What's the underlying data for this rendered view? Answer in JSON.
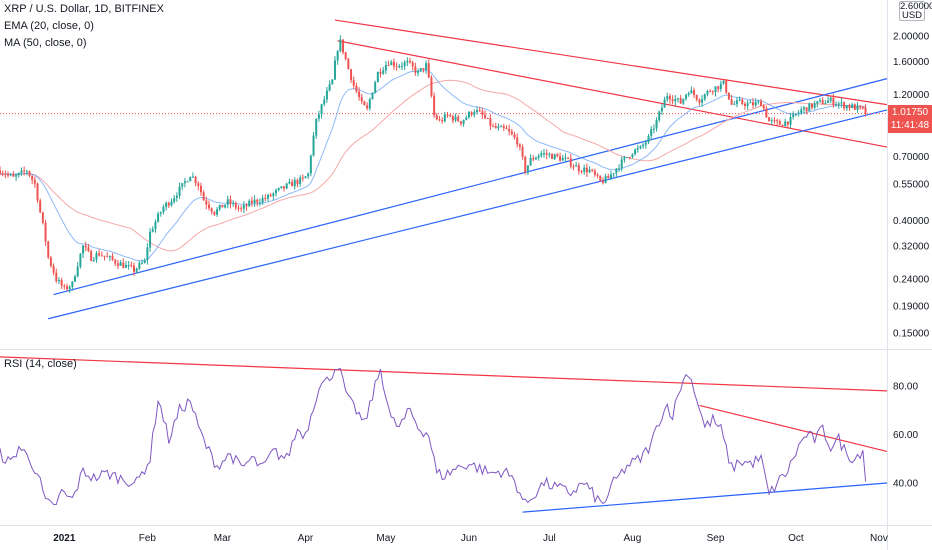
{
  "legend": {
    "symbol": "XRP / U.S. Dollar, 1D, BITFINEX",
    "ema": "EMA (20, close, 0)",
    "ma": "MA (50, close, 0)",
    "rsi": "RSI (14, close)"
  },
  "scale_unit": "USD",
  "last_price": {
    "value": "1.01750",
    "countdown": "11:41:48"
  },
  "colors": {
    "up": "#26a69a",
    "down": "#ef5350",
    "ema": "#5b9cf6",
    "ma": "#f7a8a8",
    "rsi_line": "#7e57c2",
    "rsi_band": "#ede7f6",
    "trend_red": "#f23645",
    "trend_blue": "#2962ff"
  },
  "chart_data": [
    {
      "type": "candlestick",
      "title": "XRP / U.S. Dollar, 1D, BITFINEX",
      "y_scale": "log",
      "y_ticks": [
        "2.60000",
        "2.00000",
        "1.60000",
        "1.20000",
        "0.70000",
        "0.55000",
        "0.40000",
        "0.32000",
        "0.24000",
        "0.19000",
        "0.15000"
      ],
      "x_ticks": [
        "2021",
        "Feb",
        "Mar",
        "Apr",
        "May",
        "Jun",
        "Jul",
        "Aug",
        "Sep",
        "Oct",
        "Nov"
      ],
      "x_range": [
        "2020-12-08",
        "2021-11-04"
      ],
      "last_close": 1.0175,
      "ema_period": 20,
      "ma_period": 50,
      "anchors": [
        [
          "2020-12-08",
          0.62
        ],
        [
          "2020-12-13",
          0.58
        ],
        [
          "2020-12-18",
          0.62
        ],
        [
          "2020-12-21",
          0.55
        ],
        [
          "2020-12-23",
          0.43
        ],
        [
          "2020-12-26",
          0.29
        ],
        [
          "2020-12-29",
          0.24
        ],
        [
          "2021-01-01",
          0.22
        ],
        [
          "2021-01-04",
          0.23
        ],
        [
          "2021-01-08",
          0.32
        ],
        [
          "2021-01-11",
          0.29
        ],
        [
          "2021-01-14",
          0.3
        ],
        [
          "2021-01-20",
          0.28
        ],
        [
          "2021-01-27",
          0.26
        ],
        [
          "2021-01-31",
          0.28
        ],
        [
          "2021-02-02",
          0.36
        ],
        [
          "2021-02-07",
          0.45
        ],
        [
          "2021-02-10",
          0.48
        ],
        [
          "2021-02-14",
          0.54
        ],
        [
          "2021-02-17",
          0.6
        ],
        [
          "2021-02-20",
          0.55
        ],
        [
          "2021-02-22",
          0.48
        ],
        [
          "2021-02-26",
          0.43
        ],
        [
          "2021-03-03",
          0.47
        ],
        [
          "2021-03-08",
          0.44
        ],
        [
          "2021-03-12",
          0.47
        ],
        [
          "2021-03-18",
          0.49
        ],
        [
          "2021-03-22",
          0.52
        ],
        [
          "2021-03-28",
          0.56
        ],
        [
          "2021-03-31",
          0.57
        ],
        [
          "2021-04-02",
          0.6
        ],
        [
          "2021-04-05",
          0.95
        ],
        [
          "2021-04-08",
          1.15
        ],
        [
          "2021-04-11",
          1.35
        ],
        [
          "2021-04-13",
          1.8
        ],
        [
          "2021-04-14",
          1.9
        ],
        [
          "2021-04-17",
          1.5
        ],
        [
          "2021-04-19",
          1.3
        ],
        [
          "2021-04-22",
          1.1
        ],
        [
          "2021-04-24",
          1.05
        ],
        [
          "2021-04-28",
          1.45
        ],
        [
          "2021-05-02",
          1.6
        ],
        [
          "2021-05-05",
          1.55
        ],
        [
          "2021-05-09",
          1.58
        ],
        [
          "2021-05-13",
          1.45
        ],
        [
          "2021-05-16",
          1.55
        ],
        [
          "2021-05-19",
          1.0
        ],
        [
          "2021-05-21",
          0.95
        ],
        [
          "2021-05-24",
          1.0
        ],
        [
          "2021-05-29",
          0.95
        ],
        [
          "2021-06-03",
          1.05
        ],
        [
          "2021-06-06",
          1.0
        ],
        [
          "2021-06-10",
          0.9
        ],
        [
          "2021-06-15",
          0.88
        ],
        [
          "2021-06-19",
          0.8
        ],
        [
          "2021-06-22",
          0.62
        ],
        [
          "2021-06-24",
          0.68
        ],
        [
          "2021-06-28",
          0.72
        ],
        [
          "2021-07-03",
          0.7
        ],
        [
          "2021-07-07",
          0.68
        ],
        [
          "2021-07-12",
          0.63
        ],
        [
          "2021-07-16",
          0.62
        ],
        [
          "2021-07-20",
          0.56
        ],
        [
          "2021-07-23",
          0.58
        ],
        [
          "2021-07-27",
          0.65
        ],
        [
          "2021-08-01",
          0.73
        ],
        [
          "2021-08-04",
          0.75
        ],
        [
          "2021-08-07",
          0.82
        ],
        [
          "2021-08-10",
          0.95
        ],
        [
          "2021-08-14",
          1.2
        ],
        [
          "2021-08-19",
          1.12
        ],
        [
          "2021-08-22",
          1.25
        ],
        [
          "2021-08-26",
          1.15
        ],
        [
          "2021-08-30",
          1.25
        ],
        [
          "2021-09-04",
          1.32
        ],
        [
          "2021-09-07",
          1.1
        ],
        [
          "2021-09-10",
          1.12
        ],
        [
          "2021-09-14",
          1.1
        ],
        [
          "2021-09-18",
          1.12
        ],
        [
          "2021-09-21",
          0.95
        ],
        [
          "2021-09-25",
          0.93
        ],
        [
          "2021-09-29",
          0.96
        ],
        [
          "2021-10-03",
          1.05
        ],
        [
          "2021-10-06",
          1.08
        ],
        [
          "2021-10-10",
          1.12
        ],
        [
          "2021-10-14",
          1.14
        ],
        [
          "2021-10-18",
          1.1
        ],
        [
          "2021-10-22",
          1.08
        ],
        [
          "2021-10-26",
          1.05
        ],
        [
          "2021-10-27",
          1.0175
        ]
      ],
      "trendlines": [
        {
          "color": "red",
          "from": [
            "2021-04-12",
            2.3
          ],
          "to": [
            "2021-11-04",
            1.1
          ]
        },
        {
          "color": "red",
          "from": [
            "2021-04-13",
            1.92
          ],
          "to": [
            "2021-11-04",
            0.76
          ]
        },
        {
          "color": "blue",
          "from": [
            "2020-12-28",
            0.21
          ],
          "to": [
            "2021-11-04",
            1.38
          ]
        },
        {
          "color": "blue",
          "from": [
            "2020-12-26",
            0.17
          ],
          "to": [
            "2021-11-04",
            1.05
          ]
        }
      ]
    },
    {
      "type": "line",
      "title": "RSI (14, close)",
      "y_ticks": [
        "80.00",
        "60.00",
        "40.00"
      ],
      "y_range": [
        25,
        93
      ],
      "bands": [
        30,
        50,
        70
      ],
      "anchors": [
        [
          "2020-12-08",
          52
        ],
        [
          "2020-12-12",
          48
        ],
        [
          "2020-12-15",
          55
        ],
        [
          "2020-12-19",
          50
        ],
        [
          "2020-12-22",
          44
        ],
        [
          "2020-12-25",
          32
        ],
        [
          "2020-12-28",
          30
        ],
        [
          "2020-12-31",
          36
        ],
        [
          "2021-01-04",
          33
        ],
        [
          "2021-01-08",
          45
        ],
        [
          "2021-01-12",
          42
        ],
        [
          "2021-01-17",
          44
        ],
        [
          "2021-01-22",
          42
        ],
        [
          "2021-01-28",
          40
        ],
        [
          "2021-02-02",
          50
        ],
        [
          "2021-02-05",
          75
        ],
        [
          "2021-02-09",
          58
        ],
        [
          "2021-02-13",
          70
        ],
        [
          "2021-02-17",
          74
        ],
        [
          "2021-02-20",
          63
        ],
        [
          "2021-02-23",
          55
        ],
        [
          "2021-02-27",
          47
        ],
        [
          "2021-03-04",
          52
        ],
        [
          "2021-03-08",
          46
        ],
        [
          "2021-03-12",
          50
        ],
        [
          "2021-03-16",
          46
        ],
        [
          "2021-03-20",
          53
        ],
        [
          "2021-03-25",
          50
        ],
        [
          "2021-03-29",
          62
        ],
        [
          "2021-04-01",
          60
        ],
        [
          "2021-04-06",
          80
        ],
        [
          "2021-04-09",
          82
        ],
        [
          "2021-04-13",
          89
        ],
        [
          "2021-04-17",
          74
        ],
        [
          "2021-04-20",
          70
        ],
        [
          "2021-04-23",
          64
        ],
        [
          "2021-04-26",
          76
        ],
        [
          "2021-04-29",
          87
        ],
        [
          "2021-05-03",
          66
        ],
        [
          "2021-05-06",
          63
        ],
        [
          "2021-05-10",
          70
        ],
        [
          "2021-05-13",
          63
        ],
        [
          "2021-05-17",
          60
        ],
        [
          "2021-05-20",
          44
        ],
        [
          "2021-05-23",
          43
        ],
        [
          "2021-05-27",
          46
        ],
        [
          "2021-06-01",
          48
        ],
        [
          "2021-06-05",
          46
        ],
        [
          "2021-06-09",
          44
        ],
        [
          "2021-06-14",
          45
        ],
        [
          "2021-06-18",
          41
        ],
        [
          "2021-06-22",
          31
        ],
        [
          "2021-06-25",
          35
        ],
        [
          "2021-06-29",
          40
        ],
        [
          "2021-07-04",
          38
        ],
        [
          "2021-07-09",
          36
        ],
        [
          "2021-07-14",
          40
        ],
        [
          "2021-07-19",
          33
        ],
        [
          "2021-07-21",
          31
        ],
        [
          "2021-07-25",
          40
        ],
        [
          "2021-07-30",
          47
        ],
        [
          "2021-08-04",
          50
        ],
        [
          "2021-08-08",
          56
        ],
        [
          "2021-08-11",
          66
        ],
        [
          "2021-08-14",
          72
        ],
        [
          "2021-08-16",
          68
        ],
        [
          "2021-08-19",
          80
        ],
        [
          "2021-08-22",
          86
        ],
        [
          "2021-08-25",
          75
        ],
        [
          "2021-08-28",
          63
        ],
        [
          "2021-08-31",
          66
        ],
        [
          "2021-09-03",
          62
        ],
        [
          "2021-09-07",
          46
        ],
        [
          "2021-09-10",
          49
        ],
        [
          "2021-09-14",
          48
        ],
        [
          "2021-09-18",
          50
        ],
        [
          "2021-09-21",
          35
        ],
        [
          "2021-09-24",
          40
        ],
        [
          "2021-09-28",
          45
        ],
        [
          "2021-10-02",
          55
        ],
        [
          "2021-10-05",
          60
        ],
        [
          "2021-10-08",
          58
        ],
        [
          "2021-10-11",
          62
        ],
        [
          "2021-10-14",
          55
        ],
        [
          "2021-10-17",
          58
        ],
        [
          "2021-10-20",
          52
        ],
        [
          "2021-10-23",
          50
        ],
        [
          "2021-10-26",
          54
        ],
        [
          "2021-10-27",
          41
        ]
      ],
      "trendlines": [
        {
          "color": "red",
          "from": [
            "2020-12-08",
            92
          ],
          "to": [
            "2021-11-04",
            78
          ]
        },
        {
          "color": "red",
          "from": [
            "2021-08-26",
            72
          ],
          "to": [
            "2021-11-04",
            53
          ]
        },
        {
          "color": "blue",
          "from": [
            "2021-06-21",
            28
          ],
          "to": [
            "2021-11-04",
            40
          ]
        }
      ]
    }
  ]
}
